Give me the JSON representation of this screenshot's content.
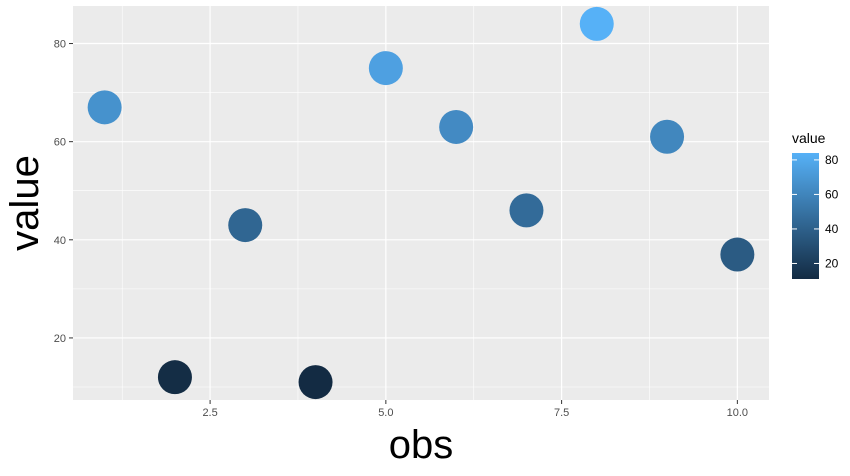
{
  "chart_data": {
    "type": "scatter",
    "title": "",
    "xlabel": "obs",
    "ylabel": "value",
    "x": [
      1,
      2,
      3,
      4,
      5,
      6,
      7,
      8,
      9,
      10
    ],
    "y": [
      67,
      12,
      43,
      11,
      75,
      63,
      46,
      84,
      61,
      37
    ],
    "xlim": [
      0.55,
      10.45
    ],
    "ylim": [
      7.35,
      87.65
    ],
    "x_ticks": [
      2.5,
      5.0,
      7.5,
      10.0
    ],
    "x_tick_labels": [
      "2.5",
      "5.0",
      "7.5",
      "10.0"
    ],
    "y_ticks": [
      20,
      40,
      60,
      80
    ],
    "y_tick_labels": [
      "20",
      "40",
      "60",
      "80"
    ],
    "grid": true,
    "panel_background": "#ebebeb",
    "grid_color": "#ffffff",
    "color_scale": {
      "variable": "value",
      "low_color": "#132b43",
      "high_color": "#56b1f7",
      "range": [
        11,
        84
      ],
      "ticks": [
        20,
        40,
        60,
        80
      ],
      "tick_labels": [
        "20",
        "40",
        "60",
        "80"
      ]
    },
    "legend": {
      "title": "value",
      "position": "right"
    }
  }
}
